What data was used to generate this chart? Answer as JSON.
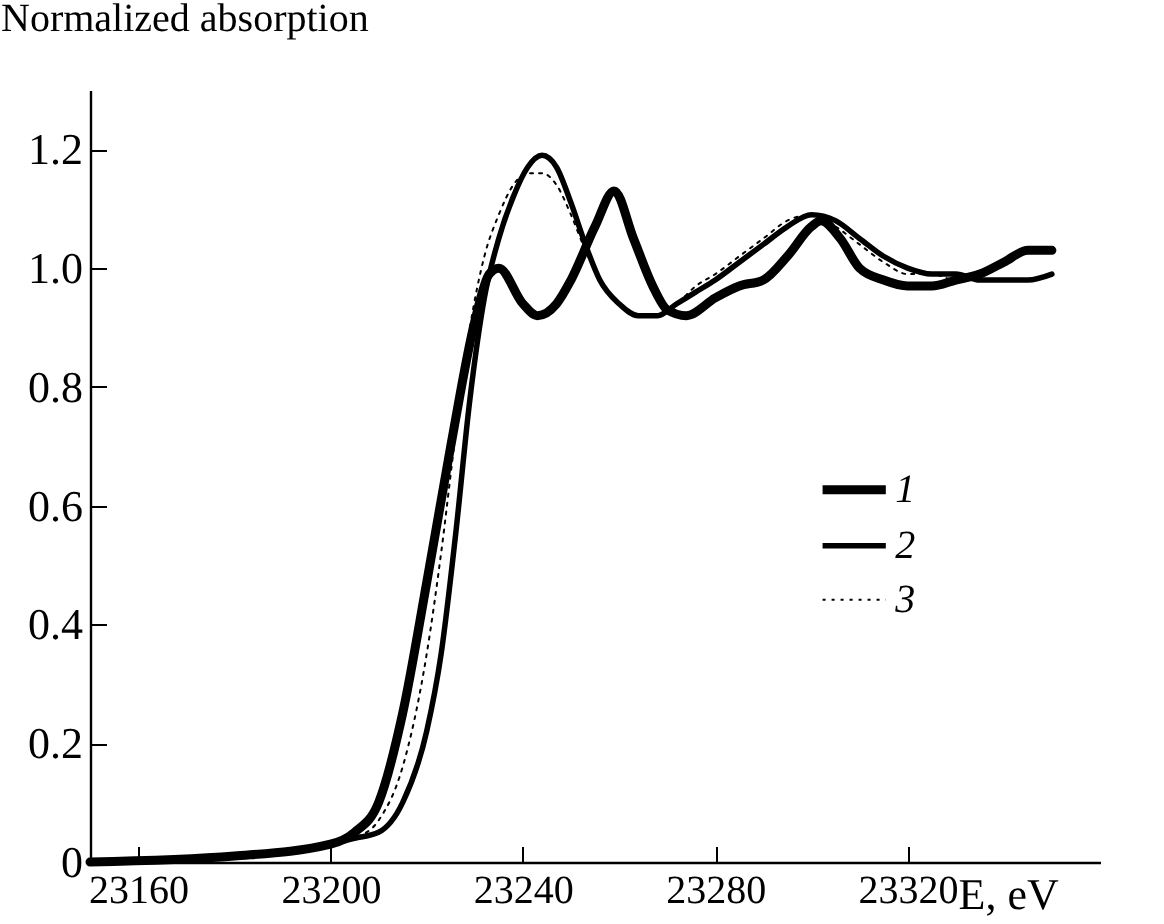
{
  "chart_data": {
    "type": "line",
    "ylabel": "Normalized absorption",
    "xlabel": "E, eV",
    "xlim": [
      23150,
      23360
    ],
    "xticks": [
      23160,
      23200,
      23240,
      23280,
      23320
    ],
    "ylim": [
      0,
      1.3
    ],
    "yticks": [
      0,
      0.2,
      0.4,
      0.6,
      0.8,
      {
        "value": 1,
        "label": "1.0"
      },
      1.2
    ],
    "legend": "right",
    "grid": false,
    "marker": "none",
    "series": [
      {
        "name": "1",
        "color": "#000000",
        "line_style": "solid",
        "x": [
          23150,
          23180,
          23200,
          23205,
          23210,
          23215,
          23220,
          23225,
          23230,
          23233,
          23235,
          23240,
          23243,
          23247,
          23250,
          23255,
          23259,
          23263,
          23267,
          23270,
          23274,
          23280,
          23285,
          23290,
          23295,
          23300,
          23302,
          23306,
          23310,
          23315,
          23320,
          23325,
          23330,
          23335,
          23340,
          23345,
          23350
        ],
        "values": [
          0,
          0.01,
          0.03,
          0.05,
          0.1,
          0.25,
          0.47,
          0.7,
          0.91,
          0.99,
          1.0,
          0.94,
          0.92,
          0.94,
          0.98,
          1.07,
          1.13,
          1.05,
          0.97,
          0.93,
          0.92,
          0.95,
          0.97,
          0.98,
          1.02,
          1.07,
          1.08,
          1.05,
          1.0,
          0.98,
          0.97,
          0.97,
          0.98,
          0.99,
          1.01,
          1.03,
          1.03
        ]
      },
      {
        "name": "2",
        "color": "#000000",
        "line_style": "solid",
        "x": [
          23150,
          23180,
          23200,
          23205,
          23210,
          23215,
          23220,
          23223,
          23226,
          23229,
          23232,
          23235,
          23238,
          23241,
          23244,
          23247,
          23250,
          23253,
          23256,
          23260,
          23264,
          23268,
          23272,
          23276,
          23280,
          23285,
          23290,
          23295,
          23300,
          23305,
          23310,
          23315,
          23320,
          23325,
          23330,
          23335,
          23340,
          23345,
          23350
        ],
        "values": [
          0,
          0.01,
          0.03,
          0.04,
          0.05,
          0.1,
          0.22,
          0.35,
          0.55,
          0.78,
          0.95,
          1.05,
          1.12,
          1.17,
          1.19,
          1.17,
          1.11,
          1.04,
          0.98,
          0.94,
          0.92,
          0.92,
          0.94,
          0.96,
          0.98,
          1.01,
          1.04,
          1.07,
          1.09,
          1.08,
          1.05,
          1.02,
          1.0,
          0.99,
          0.99,
          0.98,
          0.98,
          0.98,
          0.99
        ]
      },
      {
        "name": "3",
        "color": "#000000",
        "line_style": "dotted",
        "x": [
          23150,
          23180,
          23200,
          23205,
          23210,
          23215,
          23220,
          23223,
          23226,
          23229,
          23232,
          23235,
          23238,
          23241,
          23244,
          23247,
          23250,
          23253,
          23256,
          23260,
          23264,
          23268,
          23272,
          23276,
          23280,
          23285,
          23290,
          23295,
          23300,
          23305,
          23310,
          23315,
          23320,
          23325,
          23330,
          23335,
          23340,
          23345,
          23350
        ],
        "values": [
          0,
          0.01,
          0.03,
          0.04,
          0.07,
          0.16,
          0.35,
          0.52,
          0.72,
          0.9,
          1.02,
          1.09,
          1.14,
          1.16,
          1.16,
          1.14,
          1.09,
          1.03,
          0.98,
          0.94,
          0.92,
          0.92,
          0.94,
          0.97,
          0.99,
          1.02,
          1.05,
          1.08,
          1.09,
          1.07,
          1.04,
          1.01,
          0.99,
          0.99,
          0.98,
          0.98,
          0.98,
          0.98,
          0.99
        ]
      }
    ]
  }
}
